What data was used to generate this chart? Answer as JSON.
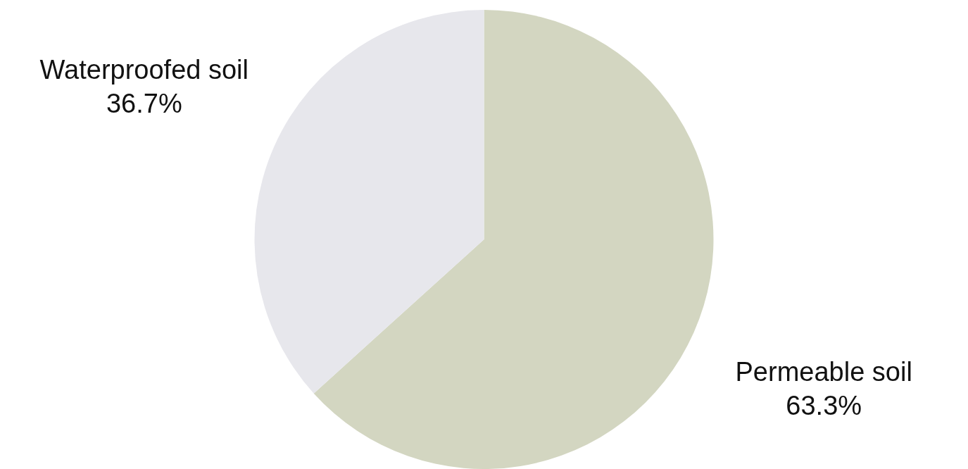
{
  "chart_data": {
    "type": "pie",
    "categories": [
      "Permeable soil",
      "Waterproofed soil"
    ],
    "values": [
      63.3,
      36.7
    ],
    "colors": [
      "#d3d6c1",
      "#e7e7ec"
    ],
    "value_labels": [
      "63.3%",
      "36.7%"
    ],
    "legend": false
  }
}
